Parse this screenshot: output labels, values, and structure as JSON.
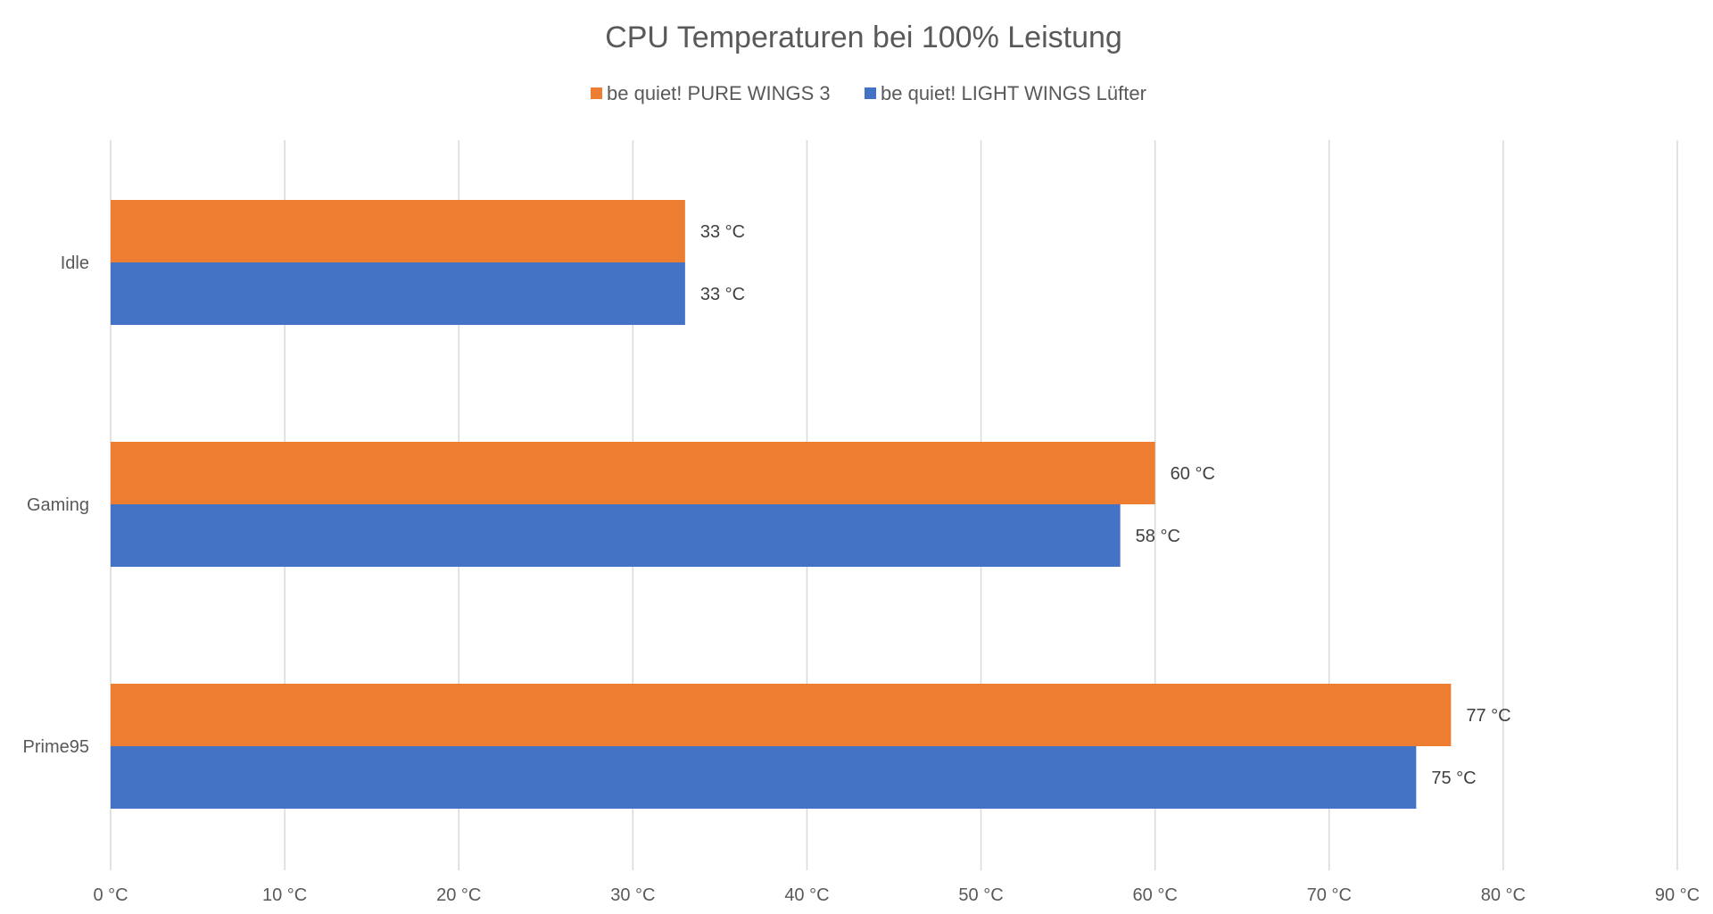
{
  "chart_data": {
    "type": "bar",
    "orientation": "horizontal",
    "title": "CPU Temperaturen bei 100% Leistung",
    "categories": [
      "Idle",
      "Gaming",
      "Prime95"
    ],
    "series": [
      {
        "name": "be quiet! PURE WINGS 3",
        "color": "#ED7D31",
        "values": [
          33,
          60,
          77
        ],
        "labels": [
          "33 °C",
          "60 °C",
          "77 °C"
        ]
      },
      {
        "name": "be quiet! LIGHT WINGS Lüfter",
        "color": "#4472C4",
        "values": [
          33,
          58,
          75
        ],
        "labels": [
          "33 °C",
          "58 °C",
          "75 °C"
        ]
      }
    ],
    "xlim": [
      0,
      90
    ],
    "xticks": [
      0,
      10,
      20,
      30,
      40,
      50,
      60,
      70,
      80,
      90
    ],
    "xtick_labels": [
      "0 °C",
      "10 °C",
      "20 °C",
      "30 °C",
      "40 °C",
      "50 °C",
      "60 °C",
      "70 °C",
      "80 °C",
      "90 °C"
    ],
    "grid": true,
    "legend_position": "top"
  }
}
